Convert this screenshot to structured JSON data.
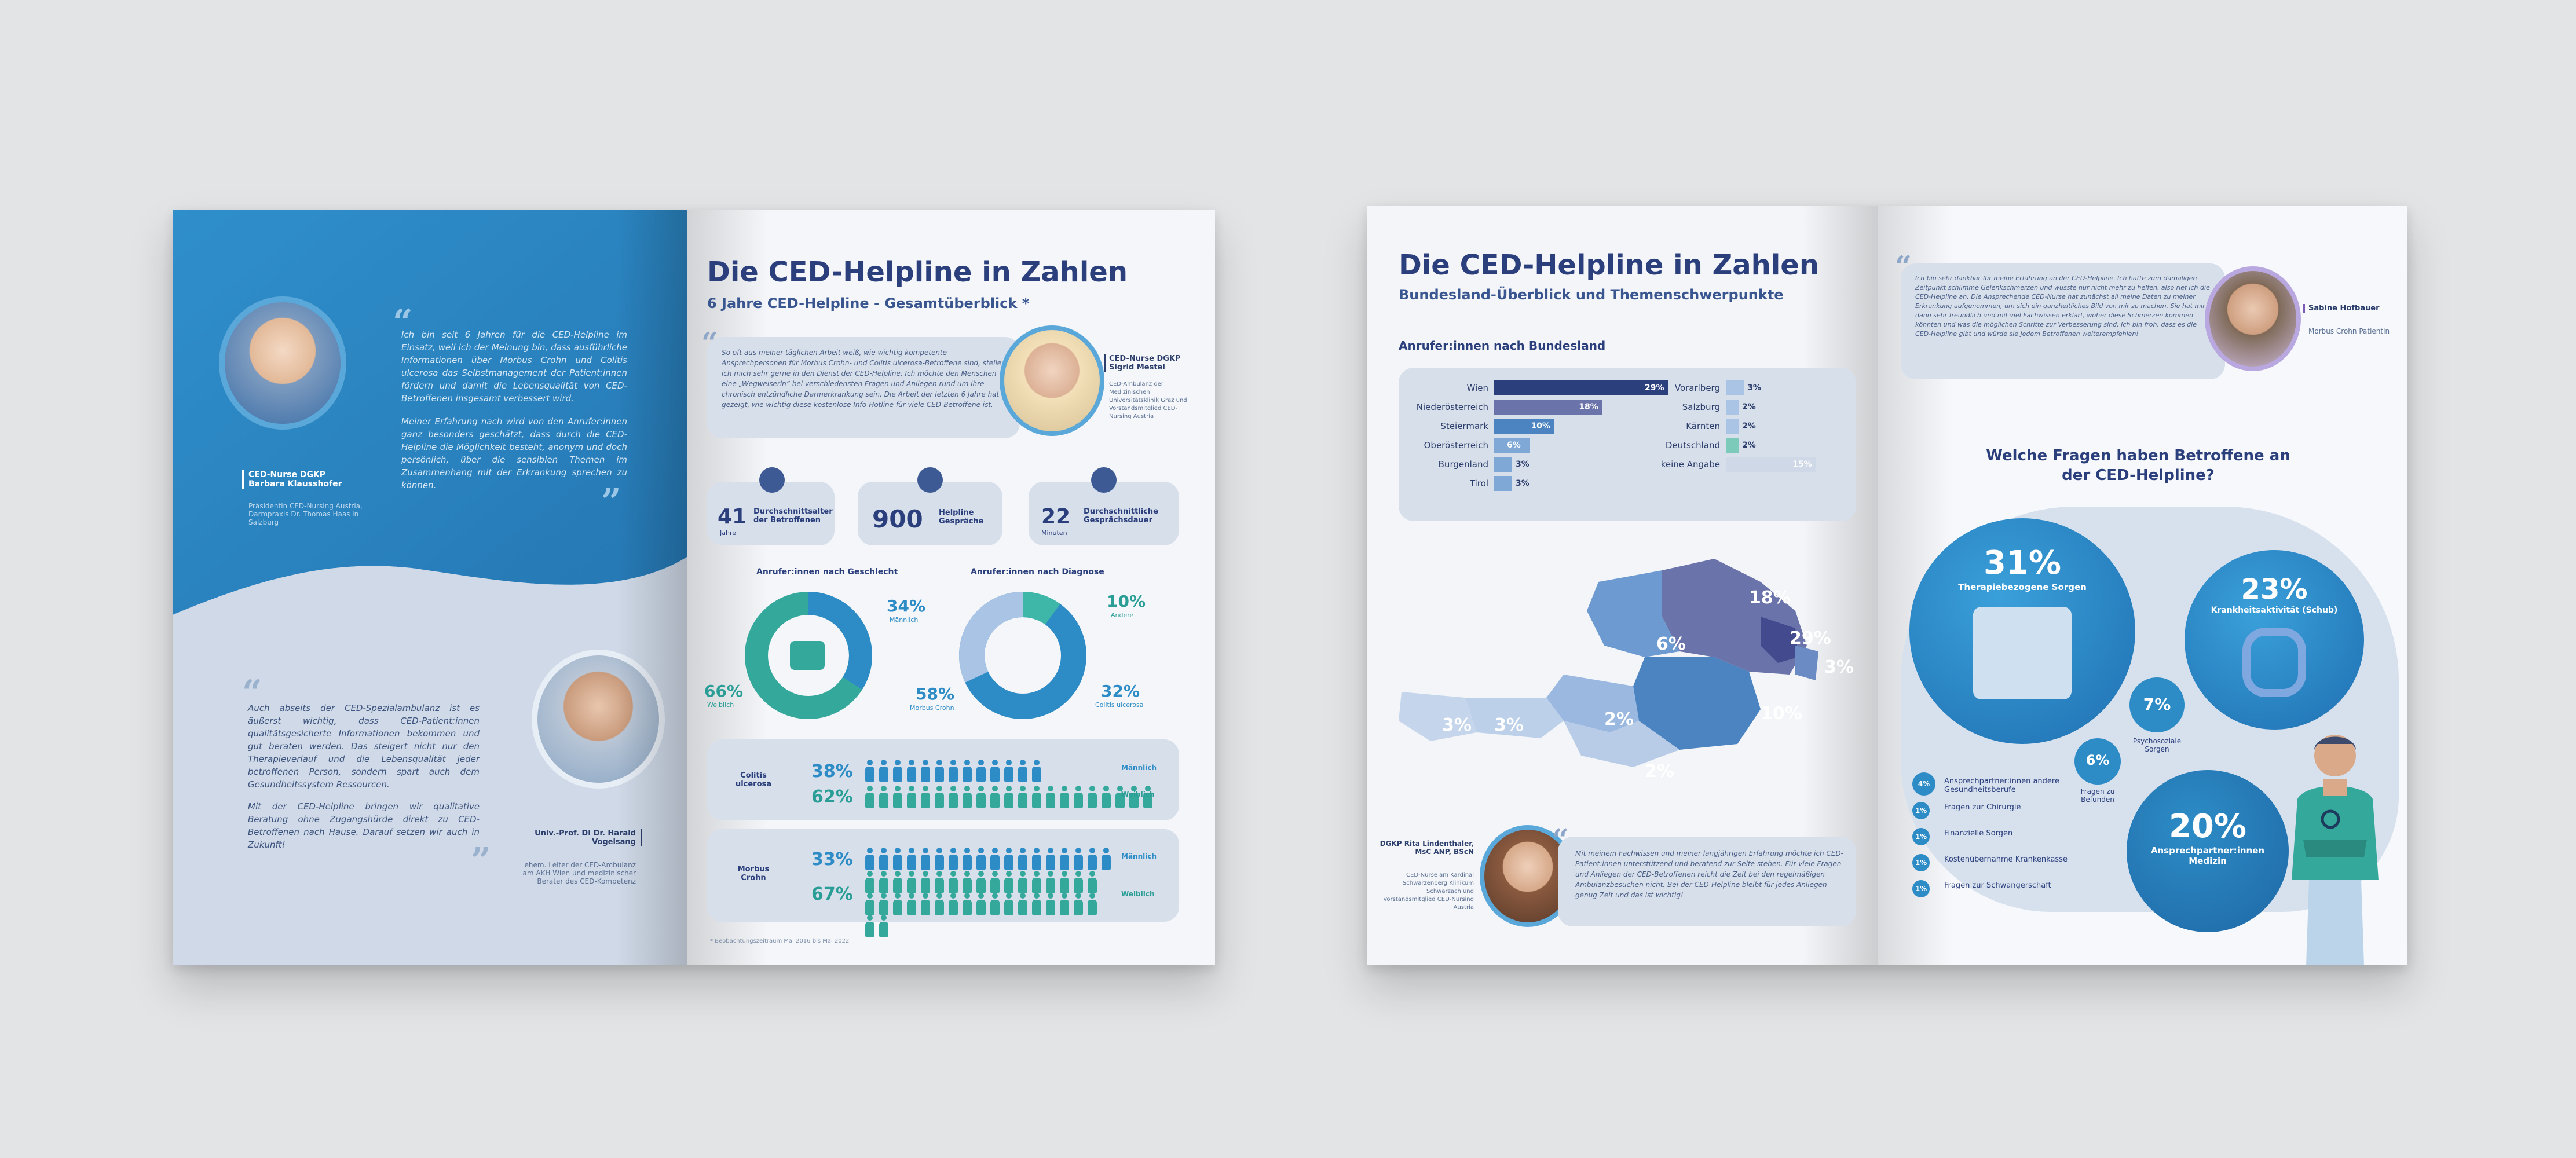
{
  "colors": {
    "primary": "#2d8cc6",
    "navy": "#2b3f7d",
    "teal": "#35a89c",
    "card": "#d7dfeb",
    "light": "#eef1f6"
  },
  "spread1": {
    "left": {
      "quote1": {
        "text": "Ich bin seit 6 Jahren für die CED-Helpline im Einsatz, weil ich der Meinung bin, dass ausführliche Informationen über Morbus Crohn und Colitis ulcerosa das Selbstmanagement der Patient:innen fördern und damit die Lebensqualität von CED-Betroffenen insgesamt verbessert wird.",
        "text2": "Meiner Erfahrung nach wird von den Anrufer:innen ganz besonders geschätzt, dass durch die CED-Helpline die Möglichkeit besteht, anonym und doch persönlich, über die sensiblen Themen im Zusammenhang mit der Erkrankung sprechen zu können.",
        "name": "CED-Nurse DGKP Barbara Klausshofer",
        "role": "Präsidentin CED-Nursing Austria, Darmpraxis Dr. Thomas Haas in Salzburg"
      },
      "quote2": {
        "text": "Auch abseits der CED-Spezialambulanz ist es äußerst wichtig, dass CED-Patient:innen qualitätsgesicherte Informationen bekommen und gut beraten werden. Das steigert nicht nur den Therapieverlauf und die Lebensqualität jeder betroffenen Person, sondern spart auch dem Gesundheitssystem Ressourcen.",
        "text2": "Mit der CED-Helpline bringen wir qualitative Beratung ohne Zugangshürde direkt zu CED-Betroffenen nach Hause. Darauf setzen wir auch in Zukunft!",
        "name": "Univ.-Prof. DI Dr. Harald Vogelsang",
        "role": "ehem. Leiter der CED-Ambulanz am AKH Wien und medizinischer Berater des CED-Kompetenz"
      }
    },
    "right": {
      "title": "Die CED-Helpline in Zahlen",
      "subtitle": "6 Jahre CED-Helpline - Gesamtüberblick *",
      "intro": "So oft aus meiner täglichen Arbeit weiß, wie wichtig kompetente Ansprechpersonen für Morbus Crohn- und Colitis ulcerosa-Betroffene sind, stelle ich mich sehr gerne in den Dienst der CED-Helpline. Ich möchte den Menschen eine „Wegweiserin“ bei verschiedensten Fragen und Anliegen rund um ihre chronisch entzündliche Darmerkrankung sein. Die Arbeit der letzten 6 Jahre hat gezeigt, wie wichtig diese kostenlose Info-Hotline für viele CED-Betroffene ist.",
      "nurse_name": "CED-Nurse DGKP Sigrid Mestel",
      "nurse_role": "CED-Ambulanz der Medizinischen Universitätsklinik Graz und Vorstandsmitglied CED-Nursing Austria",
      "stats": [
        {
          "value": "41",
          "unit": "Jahre",
          "label": "Durchschnittsalter der Betroffenen",
          "icon": "person-icon"
        },
        {
          "value": "900",
          "unit": "",
          "label": "Helpline Gespräche",
          "icon": "phone-icon"
        },
        {
          "value": "22",
          "unit": "Minuten",
          "label": "Durchschnittliche Gesprächsdauer",
          "icon": "clock-icon"
        }
      ],
      "gender": {
        "title": "Anrufer:innen nach Geschlecht",
        "male_pct": "34%",
        "male_label": "Männlich",
        "female_pct": "66%",
        "female_label": "Weiblich"
      },
      "diagnosis": {
        "title": "Anrufer:innen nach Diagnose",
        "other_pct": "10%",
        "other_label": "Andere",
        "crohn_pct": "58%",
        "crohn_label": "Morbus Crohn",
        "colitis_pct": "32%",
        "colitis_label": "Colitis ulcerosa"
      },
      "colitis_row": {
        "label": "Colitis ulcerosa",
        "male_pct": "38%",
        "female_pct": "62%",
        "male_label": "Männlich",
        "female_label": "Weiblich"
      },
      "crohn_row": {
        "label": "Morbus Crohn",
        "male_pct": "33%",
        "female_pct": "67%",
        "male_label": "Männlich",
        "female_label": "Weiblich"
      },
      "footnote": "* Beobachtungszeitraum Mai 2016 bis Mai 2022"
    }
  },
  "spread2": {
    "left": {
      "title": "Die CED-Helpline in Zahlen",
      "subtitle": "Bundesland-Überblick und Themenschwerpunkte",
      "section": "Anrufer:innen nach Bundesland",
      "map_labels": [
        "18%",
        "29%",
        "3%",
        "6%",
        "10%",
        "3%",
        "3%",
        "2%",
        "2%"
      ],
      "quote": {
        "text": "Mit meinem Fachwissen und meiner langjährigen Erfahrung möchte ich CED-Patient:innen unterstützend und beratend zur Seite stehen. Für viele Fragen und Anliegen der CED-Betroffenen reicht die Zeit bei den regelmäßigen Ambulanzbesuchen nicht. Bei der CED-Helpline bleibt für jedes Anliegen genug Zeit und das ist wichtig!",
        "name": "DGKP Rita Lindenthaler, MsC ANP, BScN",
        "role": "CED-Nurse am Kardinal Schwarzenberg Klinikum Schwarzach und Vorstandsmitglied CED-Nursing Austria"
      }
    },
    "right": {
      "quote": {
        "text": "Ich bin sehr dankbar für meine Erfahrung an der CED-Helpline. Ich hatte zum damaligen Zeitpunkt schlimme Gelenkschmerzen und wusste nur nicht mehr zu helfen, also rief ich die CED-Helpline an. Die Ansprechende CED-Nurse hat zunächst all meine Daten zu meiner Erkrankung aufgenommen, um sich ein ganzheitliches Bild von mir zu machen. Sie hat mir dann sehr freundlich und mit viel Fachwissen erklärt, woher diese Schmerzen kommen könnten und was die möglichen Schritte zur Verbesserung sind. Ich bin froh, dass es die CED-Helpline gibt und würde sie jedem Betroffenen weiterempfehlen!",
        "name": "Sabine Hofbauer",
        "role": "Morbus Crohn Patientin"
      },
      "question": "Welche Fragen haben Betroffene an der CED-Helpline?",
      "bubbles": [
        {
          "pct": "31%",
          "label": "Therapiebezogene Sorgen"
        },
        {
          "pct": "23%",
          "label": "Krankheitsaktivität (Schub)"
        },
        {
          "pct": "20%",
          "label": "Ansprechpartner:innen Medizin"
        },
        {
          "pct": "7%",
          "label": "Psychosoziale Sorgen"
        },
        {
          "pct": "6%",
          "label": "Fragen zu Befunden"
        }
      ],
      "small_items": [
        {
          "pct": "4%",
          "label": "Ansprechpartner:innen andere Gesundheitsberufe"
        },
        {
          "pct": "1%",
          "label": "Fragen zur Chirurgie"
        },
        {
          "pct": "1%",
          "label": "Finanzielle Sorgen"
        },
        {
          "pct": "1%",
          "label": "Kostenübernahme Krankenkasse"
        },
        {
          "pct": "1%",
          "label": "Fragen zur Schwangerschaft"
        }
      ]
    }
  },
  "chart_data": [
    {
      "type": "bar",
      "title": "Anrufer:innen nach Bundesland",
      "categories": [
        "Wien",
        "Niederösterreich",
        "Steiermark",
        "Oberösterreich",
        "Burgenland",
        "Tirol",
        "Vorarlberg",
        "Salzburg",
        "Kärnten",
        "Deutschland",
        "keine Angabe"
      ],
      "values": [
        29,
        18,
        10,
        6,
        3,
        3,
        3,
        2,
        2,
        2,
        15
      ],
      "labels": [
        "29%",
        "18%",
        "10%",
        "6%",
        "3%",
        "3%",
        "3%",
        "2%",
        "2%",
        "2%",
        "15%"
      ]
    },
    {
      "type": "pie",
      "title": "Anrufer:innen nach Geschlecht",
      "categories": [
        "Männlich",
        "Weiblich"
      ],
      "values": [
        34,
        66
      ]
    },
    {
      "type": "pie",
      "title": "Anrufer:innen nach Diagnose",
      "categories": [
        "Andere",
        "Morbus Crohn",
        "Colitis ulcerosa"
      ],
      "values": [
        10,
        58,
        32
      ]
    }
  ]
}
